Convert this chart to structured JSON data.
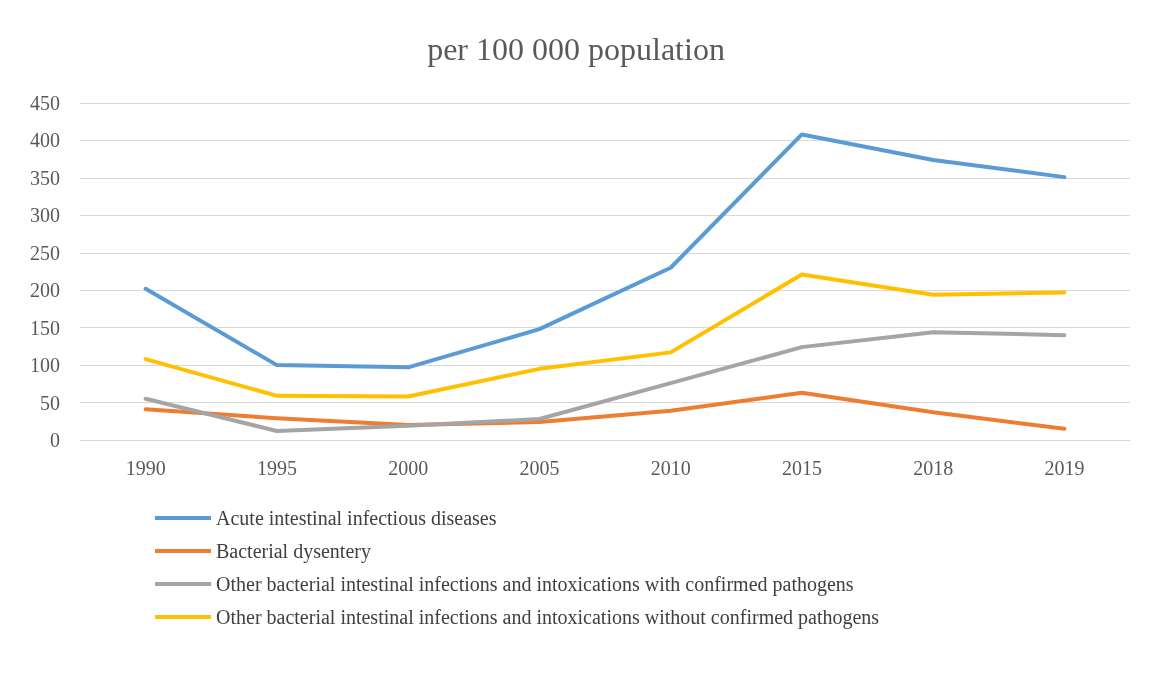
{
  "chart_data": {
    "type": "line",
    "title": "per 100 000 population",
    "categories": [
      "1990",
      "1995",
      "2000",
      "2005",
      "2010",
      "2015",
      "2018",
      "2019"
    ],
    "series": [
      {
        "name": "Acute intestinal infectious diseases",
        "color": "#5b9bd5",
        "values": [
          202,
          100,
          97,
          148,
          230,
          408,
          374,
          351
        ]
      },
      {
        "name": "Bacterial dysentery",
        "color": "#ed7d31",
        "values": [
          41,
          29,
          20,
          24,
          39,
          63,
          37,
          15
        ]
      },
      {
        "name": "Other bacterial intestinal infections and intoxications with confirmed pathogens",
        "color": "#a5a5a5",
        "values": [
          55,
          12,
          19,
          28,
          76,
          124,
          144,
          140
        ]
      },
      {
        "name": "Other bacterial intestinal infections and intoxications without confirmed pathogens",
        "color": "#ffc000",
        "values": [
          108,
          59,
          58,
          95,
          117,
          221,
          194,
          197
        ]
      }
    ],
    "ylim": [
      0,
      450
    ],
    "yticks": [
      0,
      50,
      100,
      150,
      200,
      250,
      300,
      350,
      400,
      450
    ],
    "grid": "y",
    "legend": "bottom",
    "marker": "none",
    "line_style": "solid"
  }
}
